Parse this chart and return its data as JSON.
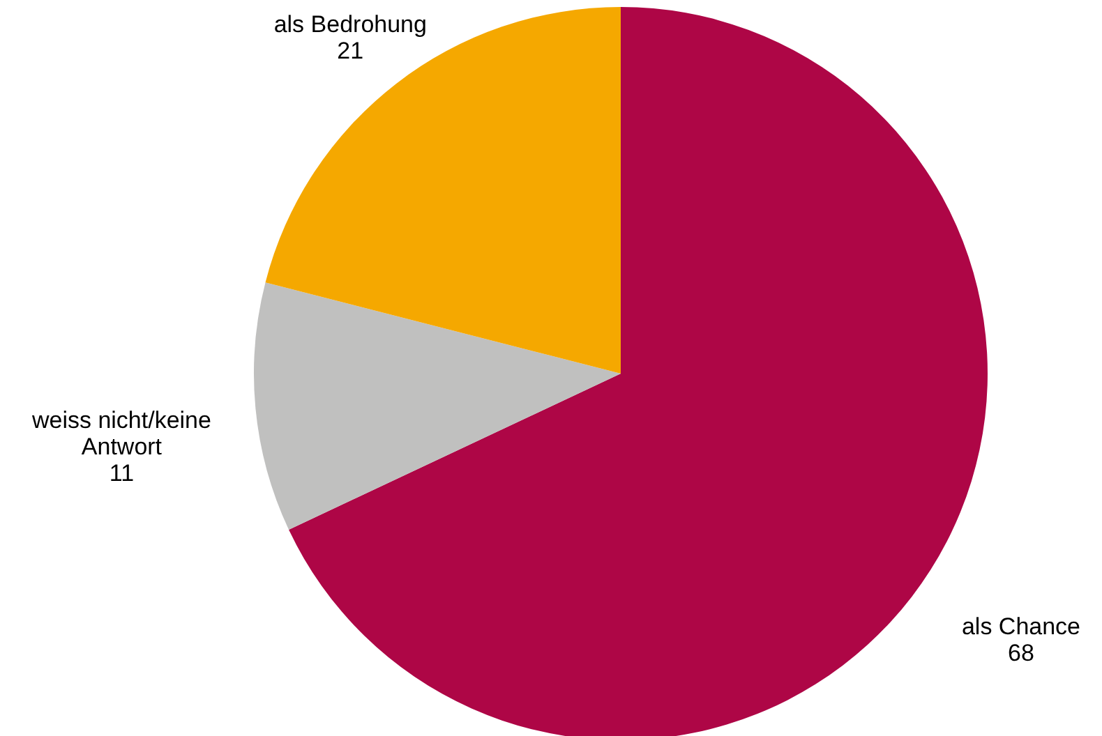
{
  "chart_data": {
    "type": "pie",
    "categories": [
      "als Chance",
      "weiss nicht/keine Antwort",
      "als Bedrohung"
    ],
    "values": [
      68,
      11,
      21
    ],
    "colors": [
      "#ae0646",
      "#c0c0bf",
      "#f5a800"
    ],
    "data_labels": true
  }
}
